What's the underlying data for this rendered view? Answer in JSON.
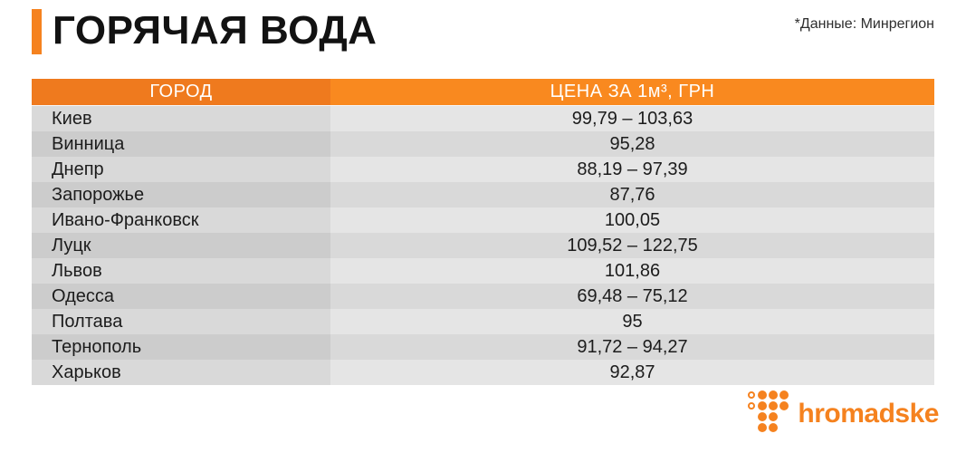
{
  "header": {
    "title": "ГОРЯЧАЯ ВОДА",
    "source_note": "*Данные: Минрегион"
  },
  "chart_data": {
    "type": "table",
    "title": "ГОРЯЧАЯ ВОДА",
    "source": "*Данные: Минрегион",
    "columns": [
      "ГОРОД",
      "ЦЕНА ЗА 1м³, ГРН"
    ],
    "rows": [
      {
        "city": "Киев",
        "price": "99,79 – 103,63"
      },
      {
        "city": "Винница",
        "price": "95,28"
      },
      {
        "city": "Днепр",
        "price": "88,19 – 97,39"
      },
      {
        "city": "Запорожье",
        "price": "87,76"
      },
      {
        "city": "Ивано-Франковск",
        "price": "100,05"
      },
      {
        "city": "Луцк",
        "price": "109,52 – 122,75"
      },
      {
        "city": "Львов",
        "price": "101,86"
      },
      {
        "city": "Одесса",
        "price": "69,48 – 75,12"
      },
      {
        "city": "Полтава",
        "price": "95"
      },
      {
        "city": "Тернополь",
        "price": "91,72 – 94,27"
      },
      {
        "city": "Харьков",
        "price": "92,87"
      }
    ]
  },
  "footer": {
    "brand": "hromadske"
  },
  "colors": {
    "accent_orange": "#f5821f",
    "header_city_bg": "#ef7a1e",
    "header_price_bg": "#f9891f",
    "row_light_city": "#d9d9d9",
    "row_light_price": "#e5e5e5",
    "row_dark_city": "#cccccc",
    "row_dark_price": "#d9d9d9",
    "title_text": "#121212",
    "header_text": "#ffffff"
  }
}
